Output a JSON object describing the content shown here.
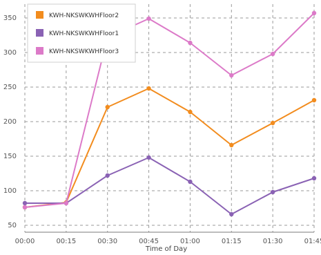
{
  "chart_data": {
    "type": "line",
    "title": "",
    "xlabel": "Time of Day",
    "ylabel": "",
    "categories": [
      "00:00",
      "00:15",
      "00:30",
      "00:45",
      "01:00",
      "01:15",
      "01:30",
      "01:45"
    ],
    "yticks": [
      50,
      100,
      150,
      200,
      250,
      300,
      350
    ],
    "ylim": [
      40,
      370
    ],
    "grid": true,
    "legend_position": "top-left",
    "series": [
      {
        "name": "KWH-NKSWKWHFloor2",
        "color": "#f28c1e",
        "values": [
          76,
          83,
          221,
          248,
          214,
          166,
          198,
          231
        ]
      },
      {
        "name": "KWH-NKSWKWHFloor1",
        "color": "#8a62b4",
        "values": [
          82,
          82,
          122,
          148,
          113,
          66,
          98,
          118
        ]
      },
      {
        "name": "KWH-NKSWKWHFloor3",
        "color": "#dc7ac8",
        "values": [
          76,
          82,
          322,
          349,
          314,
          267,
          298,
          357
        ]
      }
    ]
  }
}
